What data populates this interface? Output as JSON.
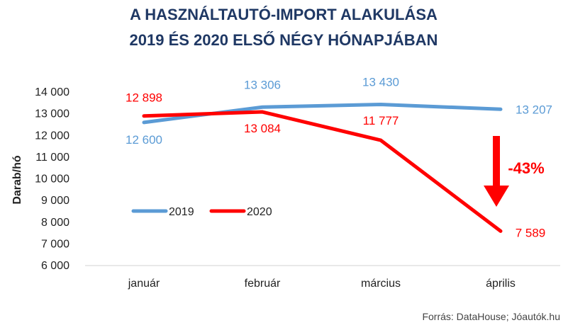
{
  "colors": {
    "s2019": "#5b9bd5",
    "s2020": "#ff0000",
    "title": "#1f3864"
  },
  "chart_data": {
    "type": "line",
    "title_lines": [
      "A HASZNÁLTAUTÓ-IMPORT ALAKULÁSA",
      "2019 ÉS 2020 ELSŐ NÉGY HÓNAPJÁBAN"
    ],
    "ylabel": "Darab/hó",
    "xlabel": "",
    "categories": [
      "január",
      "február",
      "március",
      "április"
    ],
    "ylim": [
      6000,
      14000
    ],
    "y_ticks": [
      6000,
      7000,
      8000,
      9000,
      10000,
      11000,
      12000,
      13000,
      14000
    ],
    "y_tick_labels": [
      "6 000",
      "7 000",
      "8 000",
      "9 000",
      "10 000",
      "11 000",
      "12 000",
      "13 000",
      "14 000"
    ],
    "grid": false,
    "legend_position": "left-center",
    "series": [
      {
        "name": "2019",
        "values": [
          12600,
          13306,
          13430,
          13207
        ],
        "labels": [
          "12 600",
          "13 306",
          "13 430",
          "13 207"
        ],
        "color": "#5b9bd5"
      },
      {
        "name": "2020",
        "values": [
          12898,
          13084,
          11777,
          7589
        ],
        "labels": [
          "12 898",
          "13 084",
          "11 777",
          "7 589"
        ],
        "color": "#ff0000"
      }
    ],
    "annotation": {
      "text": "-43%",
      "category": "április"
    }
  },
  "source": "Forrás: DataHouse; Jóautók.hu"
}
